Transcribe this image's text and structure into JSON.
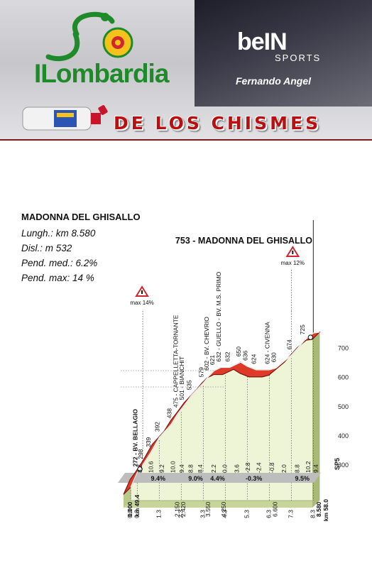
{
  "header": {
    "brand": "ILombardia",
    "broadcaster": "beIN",
    "broadcaster_sub": "SPORTS",
    "author": "Fernando Angel",
    "show_title": "DE LOS CHISMES"
  },
  "stats": {
    "climb_name": "MADONNA DEL GHISALLO",
    "length": "Lungh.: km 8.580",
    "gain": "Disl.: m 532",
    "avg_grade": "Pend. med.: 6.2%",
    "max_grade": "Pend. max: 14 %"
  },
  "chart_data": {
    "type": "area",
    "title": "753 - MADONNA DEL GHISALLO",
    "x_unit": "km",
    "y_unit": "m",
    "ylim": [
      200,
      760
    ],
    "y_ticks": [
      300,
      400,
      500,
      600,
      700
    ],
    "y_tick_labels": [
      "300",
      "400",
      "500",
      "600",
      "700"
    ],
    "profile": [
      {
        "km": 0.0,
        "m": 221
      },
      {
        "km": 0.3,
        "m": 272
      },
      {
        "km": 0.55,
        "m": 298
      },
      {
        "km": 0.9,
        "m": 339
      },
      {
        "km": 1.3,
        "m": 392
      },
      {
        "km": 1.85,
        "m": 438
      },
      {
        "km": 2.15,
        "m": 475
      },
      {
        "km": 2.42,
        "m": 501
      },
      {
        "km": 2.75,
        "m": 535
      },
      {
        "km": 3.3,
        "m": 579
      },
      {
        "km": 3.55,
        "m": 602
      },
      {
        "km": 3.8,
        "m": 621
      },
      {
        "km": 4.1,
        "m": 632
      },
      {
        "km": 4.25,
        "m": 632
      },
      {
        "km": 4.5,
        "m": 632
      },
      {
        "km": 5.0,
        "m": 650
      },
      {
        "km": 5.3,
        "m": 636
      },
      {
        "km": 5.7,
        "m": 624
      },
      {
        "km": 6.3,
        "m": 624
      },
      {
        "km": 6.6,
        "m": 630
      },
      {
        "km": 7.3,
        "m": 674
      },
      {
        "km": 7.9,
        "m": 725
      },
      {
        "km": 8.3,
        "m": 750
      },
      {
        "km": 8.58,
        "m": 753
      }
    ],
    "elevation_labels": [
      {
        "km": 0.3,
        "label": "272 - BV. BELLAGIO"
      },
      {
        "km": 0.55,
        "label": "298"
      },
      {
        "km": 0.9,
        "label": "339"
      },
      {
        "km": 1.3,
        "label": "392"
      },
      {
        "km": 1.85,
        "label": "438"
      },
      {
        "km": 2.15,
        "label": "475 - CAPPELLETTA-TORNANTE"
      },
      {
        "km": 2.42,
        "label": "501 - BIANCHIT"
      },
      {
        "km": 2.75,
        "label": "535"
      },
      {
        "km": 3.3,
        "label": "579"
      },
      {
        "km": 3.55,
        "label": "602 - BV. CHEVRIO"
      },
      {
        "km": 3.8,
        "label": "621"
      },
      {
        "km": 4.1,
        "label": "632 - GUELLO - BV. M.S. PRIMO"
      },
      {
        "km": 4.5,
        "label": "632"
      },
      {
        "km": 5.0,
        "label": "650"
      },
      {
        "km": 5.3,
        "label": "636"
      },
      {
        "km": 5.7,
        "label": "624"
      },
      {
        "km": 6.3,
        "label": "624 - CIVENNA"
      },
      {
        "km": 6.6,
        "label": "630"
      },
      {
        "km": 7.3,
        "label": "674"
      },
      {
        "km": 7.9,
        "label": "725"
      }
    ],
    "segment_grades": [
      {
        "km": 0.45,
        "label": "8.2"
      },
      {
        "km": 0.95,
        "label": "10.6"
      },
      {
        "km": 1.45,
        "label": "9.2"
      },
      {
        "km": 1.95,
        "label": "10.0"
      },
      {
        "km": 2.35,
        "label": "9.4"
      },
      {
        "km": 2.75,
        "label": "8.8"
      },
      {
        "km": 3.2,
        "label": "8.4"
      },
      {
        "km": 3.8,
        "label": "2.2"
      },
      {
        "km": 4.3,
        "label": "0.0"
      },
      {
        "km": 4.85,
        "label": "3.6"
      },
      {
        "km": 5.35,
        "label": "-2.8"
      },
      {
        "km": 5.85,
        "label": "-2.4"
      },
      {
        "km": 6.45,
        "label": "-0.8"
      },
      {
        "km": 7.0,
        "label": "2.0"
      },
      {
        "km": 7.6,
        "label": "8.8"
      },
      {
        "km": 8.1,
        "label": "10.2"
      },
      {
        "km": 8.45,
        "label": "9.4"
      }
    ],
    "section_grades": [
      {
        "km": 1.25,
        "label": "9.4%"
      },
      {
        "km": 2.95,
        "label": "9.0%"
      },
      {
        "km": 3.95,
        "label": "4.4%"
      },
      {
        "km": 5.6,
        "label": "-0.3%"
      },
      {
        "km": 7.8,
        "label": "9.5%"
      }
    ],
    "km_ticks": [
      {
        "km": 0.0,
        "label": "0.0"
      },
      {
        "km": 0.3,
        "label": "0.3"
      },
      {
        "km": 1.3,
        "label": "1.3"
      },
      {
        "km": 2.3,
        "label": "2.3"
      },
      {
        "km": 3.3,
        "label": "3.3"
      },
      {
        "km": 4.3,
        "label": "4.3"
      },
      {
        "km": 5.3,
        "label": "5.3"
      },
      {
        "km": 6.3,
        "label": "6.3"
      },
      {
        "km": 7.3,
        "label": "7.3"
      },
      {
        "km": 8.3,
        "label": "8.3"
      }
    ],
    "km_markers": [
      {
        "km": 0.0,
        "label": "0.000"
      },
      {
        "km": 2.15,
        "label": "2.150"
      },
      {
        "km": 2.42,
        "label": "2.420"
      },
      {
        "km": 3.55,
        "label": "3.550"
      },
      {
        "km": 4.25,
        "label": "4.250"
      },
      {
        "km": 6.6,
        "label": "6.600"
      },
      {
        "km": 8.58,
        "label": "8.580"
      }
    ],
    "route_km": [
      {
        "km": 0.0,
        "label": "km 49.4"
      },
      {
        "km": 8.58,
        "label": "km 58.0"
      }
    ],
    "road_code": "SP5",
    "max_markers": [
      {
        "km": 0.55,
        "label": "max 14%"
      },
      {
        "km": 7.3,
        "label": "max 12%"
      }
    ]
  }
}
